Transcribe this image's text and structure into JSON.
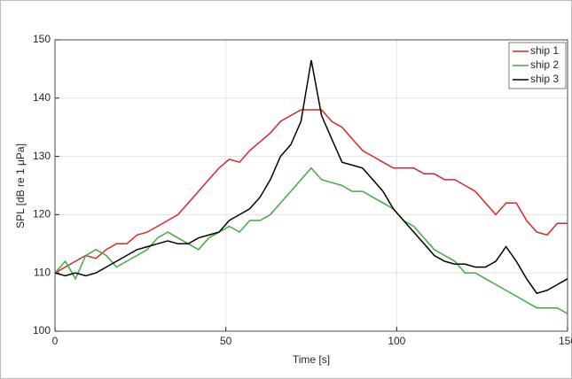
{
  "chart_data": {
    "type": "line",
    "xlabel": "Time [s]",
    "ylabel": "SPL [dB re 1 μPa]",
    "x": [
      0,
      3,
      6,
      9,
      12,
      15,
      18,
      21,
      24,
      27,
      30,
      33,
      36,
      39,
      42,
      45,
      48,
      51,
      54,
      57,
      60,
      63,
      66,
      69,
      72,
      75,
      78,
      81,
      84,
      87,
      90,
      93,
      96,
      99,
      102,
      105,
      108,
      111,
      114,
      117,
      120,
      123,
      126,
      129,
      132,
      135,
      138,
      141,
      144,
      147,
      150
    ],
    "series": [
      {
        "name": "ship 1",
        "color": "#d62728",
        "values": [
          110,
          111,
          112,
          113,
          112.5,
          114,
          115,
          115,
          116.5,
          117,
          118,
          119,
          120,
          122,
          124,
          126,
          128,
          129.5,
          129,
          131,
          132.5,
          134,
          136,
          137,
          138,
          138,
          138,
          136,
          135,
          133,
          131,
          130,
          129,
          128,
          128,
          128,
          127,
          127,
          126,
          126,
          125,
          124,
          122,
          120,
          122,
          122,
          119,
          117,
          116.5,
          118.5,
          118.5
        ]
      },
      {
        "name": "ship 2",
        "color": "#3cae3c",
        "values": [
          110,
          112,
          109,
          113,
          114,
          113,
          111,
          112,
          113,
          114,
          116,
          117,
          116,
          115,
          114,
          116,
          117,
          118,
          117,
          119,
          119,
          120,
          122,
          124,
          126,
          128,
          126,
          125.5,
          125,
          124,
          124,
          123,
          122,
          121,
          119,
          118,
          116,
          114,
          113,
          112,
          110,
          110,
          109,
          108,
          107,
          106,
          105,
          104,
          104,
          104,
          103
        ]
      },
      {
        "name": "ship 3",
        "color": "#000000",
        "values": [
          110,
          109.5,
          110,
          109.5,
          110,
          111,
          112,
          113,
          114,
          114.5,
          115,
          115.5,
          115,
          115,
          116,
          116.5,
          117,
          119,
          120,
          121,
          123,
          126,
          130,
          132,
          136,
          146.5,
          137,
          133,
          129,
          128.5,
          128,
          126,
          124,
          121,
          119,
          117,
          115,
          113,
          112,
          111.5,
          111.5,
          111,
          111,
          112,
          114.5,
          112,
          109,
          106.5,
          107,
          108,
          109
        ]
      }
    ],
    "xlim": [
      0,
      150
    ],
    "xticks": [
      0,
      50,
      100,
      150
    ],
    "ylim": [
      100,
      150
    ],
    "yticks": [
      100,
      110,
      120,
      130,
      140,
      150
    ],
    "grid": true,
    "legend": "northeast"
  }
}
